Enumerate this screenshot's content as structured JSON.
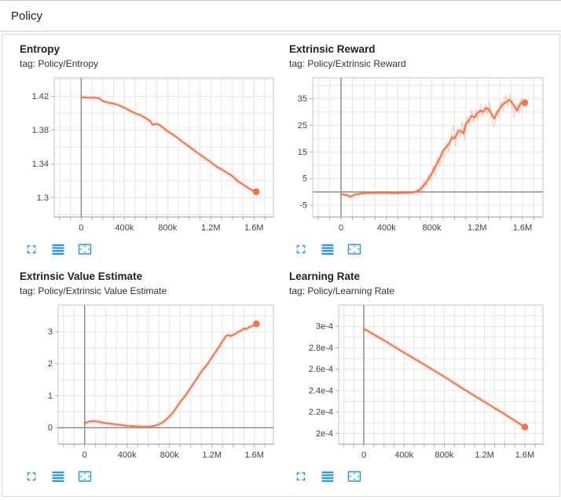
{
  "header": {
    "title": "Policy"
  },
  "colors": {
    "line": "#ff7043",
    "icon": "#2196f3",
    "zero_axis": "#8f8f8f",
    "grid": "#e5e5e5"
  },
  "card_icons": [
    "fullscreen-icon",
    "runs-selector-icon",
    "fit-domain-icon"
  ],
  "chart_data": [
    {
      "type": "line",
      "title": "Entropy",
      "tag": "tag: Policy/Entropy",
      "color": "#ff7043",
      "margin_left": 44,
      "xlim": [
        -250000,
        1780000
      ],
      "ylim": [
        1.277,
        1.442
      ],
      "x_minor_step": 100000,
      "y_minor_step": 0.02,
      "zero_x_line": true,
      "zero_y_line": false,
      "xticks": [
        {
          "v": 0,
          "label": "0"
        },
        {
          "v": 400000,
          "label": "400k"
        },
        {
          "v": 800000,
          "label": "800k"
        },
        {
          "v": 1200000,
          "label": "1.2M"
        },
        {
          "v": 1600000,
          "label": "1.6M"
        }
      ],
      "yticks": [
        {
          "v": 1.3,
          "label": "1.3"
        },
        {
          "v": 1.34,
          "label": "1.34"
        },
        {
          "v": 1.38,
          "label": "1.38"
        },
        {
          "v": 1.42,
          "label": "1.42"
        }
      ],
      "series": [
        {
          "name": "smoothed",
          "points": [
            [
              0,
              1.419
            ],
            [
              60000,
              1.4185
            ],
            [
              120000,
              1.4185
            ],
            [
              160000,
              1.418
            ],
            [
              200000,
              1.4145
            ],
            [
              250000,
              1.4125
            ],
            [
              300000,
              1.4115
            ],
            [
              350000,
              1.4095
            ],
            [
              400000,
              1.4065
            ],
            [
              450000,
              1.403
            ],
            [
              500000,
              1.4
            ],
            [
              550000,
              1.3975
            ],
            [
              600000,
              1.394
            ],
            [
              640000,
              1.3905
            ],
            [
              660000,
              1.3865
            ],
            [
              700000,
              1.3875
            ],
            [
              720000,
              1.3865
            ],
            [
              760000,
              1.383
            ],
            [
              800000,
              1.3785
            ],
            [
              850000,
              1.3745
            ],
            [
              900000,
              1.37
            ],
            [
              950000,
              1.365
            ],
            [
              1000000,
              1.3605
            ],
            [
              1050000,
              1.3555
            ],
            [
              1100000,
              1.351
            ],
            [
              1150000,
              1.3465
            ],
            [
              1200000,
              1.342
            ],
            [
              1250000,
              1.337
            ],
            [
              1300000,
              1.3335
            ],
            [
              1350000,
              1.3295
            ],
            [
              1400000,
              1.3255
            ],
            [
              1450000,
              1.3195
            ],
            [
              1500000,
              1.3155
            ],
            [
              1550000,
              1.311
            ],
            [
              1600000,
              1.3075
            ],
            [
              1620000,
              1.307
            ]
          ]
        }
      ],
      "end_dot": [
        1620000,
        1.307
      ]
    },
    {
      "type": "line",
      "title": "Extrinsic Reward",
      "tag": "tag: Policy/Extrinsic Reward",
      "color": "#ff7043",
      "margin_left": 30,
      "xlim": [
        -250000,
        1780000
      ],
      "ylim": [
        -9.4,
        42.8
      ],
      "x_minor_step": 100000,
      "y_minor_step": 5,
      "zero_x_line": true,
      "zero_y_line": true,
      "xticks": [
        {
          "v": 0,
          "label": "0"
        },
        {
          "v": 400000,
          "label": "400k"
        },
        {
          "v": 800000,
          "label": "800k"
        },
        {
          "v": 1200000,
          "label": "1.2M"
        },
        {
          "v": 1600000,
          "label": "1.6M"
        }
      ],
      "yticks": [
        {
          "v": -5,
          "label": "-5"
        },
        {
          "v": 5,
          "label": "5"
        },
        {
          "v": 15,
          "label": "15"
        },
        {
          "v": 25,
          "label": "25"
        },
        {
          "v": 35,
          "label": "35"
        }
      ],
      "series": [
        {
          "name": "raw",
          "points": [
            [
              0,
              -0.5
            ],
            [
              30000,
              -1.5
            ],
            [
              60000,
              -0.8
            ],
            [
              80000,
              -2.6
            ],
            [
              100000,
              -1.8
            ],
            [
              130000,
              -0.6
            ],
            [
              160000,
              -1.2
            ],
            [
              200000,
              -0.4
            ],
            [
              300000,
              -0.5
            ],
            [
              400000,
              -0.3
            ],
            [
              500000,
              -0.5
            ],
            [
              600000,
              -0.4
            ],
            [
              650000,
              0.2
            ],
            [
              680000,
              -1
            ],
            [
              700000,
              2
            ],
            [
              710000,
              -0.5
            ],
            [
              730000,
              4.5
            ],
            [
              750000,
              1.5
            ],
            [
              770000,
              6.5
            ],
            [
              790000,
              4
            ],
            [
              810000,
              9.5
            ],
            [
              830000,
              6
            ],
            [
              850000,
              13
            ],
            [
              870000,
              9.5
            ],
            [
              890000,
              16
            ],
            [
              910000,
              12.5
            ],
            [
              930000,
              18.5
            ],
            [
              950000,
              15
            ],
            [
              970000,
              21
            ],
            [
              990000,
              25
            ],
            [
              1010000,
              17
            ],
            [
              1030000,
              24
            ],
            [
              1050000,
              20.5
            ],
            [
              1070000,
              26.5
            ],
            [
              1090000,
              19.5
            ],
            [
              1110000,
              28
            ],
            [
              1130000,
              25
            ],
            [
              1150000,
              31
            ],
            [
              1170000,
              26
            ],
            [
              1190000,
              31
            ],
            [
              1210000,
              27
            ],
            [
              1230000,
              33
            ],
            [
              1250000,
              28
            ],
            [
              1270000,
              33
            ],
            [
              1290000,
              29
            ],
            [
              1310000,
              34
            ],
            [
              1330000,
              26
            ],
            [
              1350000,
              24.5
            ],
            [
              1370000,
              30.5
            ],
            [
              1390000,
              28
            ],
            [
              1410000,
              34
            ],
            [
              1430000,
              30
            ],
            [
              1450000,
              36.5
            ],
            [
              1470000,
              32
            ],
            [
              1490000,
              37
            ],
            [
              1510000,
              31
            ],
            [
              1530000,
              28
            ],
            [
              1550000,
              33
            ],
            [
              1570000,
              29.5
            ],
            [
              1590000,
              35
            ],
            [
              1610000,
              32
            ],
            [
              1620000,
              34
            ]
          ]
        },
        {
          "name": "smoothed",
          "points": [
            [
              0,
              -0.8
            ],
            [
              50000,
              -1.2
            ],
            [
              80000,
              -1.8
            ],
            [
              120000,
              -1.0
            ],
            [
              200000,
              -0.5
            ],
            [
              300000,
              -0.4
            ],
            [
              400000,
              -0.35
            ],
            [
              500000,
              -0.45
            ],
            [
              600000,
              -0.35
            ],
            [
              650000,
              -0.1
            ],
            [
              700000,
              1.0
            ],
            [
              750000,
              3.5
            ],
            [
              800000,
              7.0
            ],
            [
              850000,
              11.0
            ],
            [
              880000,
              13.5
            ],
            [
              900000,
              15.5
            ],
            [
              930000,
              17.0
            ],
            [
              950000,
              18.0
            ],
            [
              980000,
              20.5
            ],
            [
              1000000,
              20.0
            ],
            [
              1030000,
              22.5
            ],
            [
              1050000,
              23.0
            ],
            [
              1080000,
              22.0
            ],
            [
              1100000,
              25.5
            ],
            [
              1130000,
              27.0
            ],
            [
              1150000,
              28.5
            ],
            [
              1180000,
              28.0
            ],
            [
              1200000,
              29.5
            ],
            [
              1230000,
              30.5
            ],
            [
              1250000,
              30.0
            ],
            [
              1280000,
              31.5
            ],
            [
              1300000,
              31.0
            ],
            [
              1330000,
              29.0
            ],
            [
              1350000,
              27.5
            ],
            [
              1380000,
              30.0
            ],
            [
              1400000,
              31.5
            ],
            [
              1430000,
              33.0
            ],
            [
              1450000,
              33.5
            ],
            [
              1480000,
              34.5
            ],
            [
              1500000,
              34.0
            ],
            [
              1530000,
              32.0
            ],
            [
              1550000,
              30.5
            ],
            [
              1580000,
              33.0
            ],
            [
              1600000,
              33.5
            ],
            [
              1620000,
              33.5
            ]
          ]
        }
      ],
      "end_dot": [
        1620000,
        33.5
      ]
    },
    {
      "type": "line",
      "title": "Extrinsic Value Estimate",
      "tag": "tag: Policy/Extrinsic Value Estimate",
      "color": "#ff7043",
      "margin_left": 49,
      "xlim": [
        -250000,
        1780000
      ],
      "ylim": [
        -0.516,
        3.836
      ],
      "x_minor_step": 100000,
      "y_minor_step": 0.5,
      "zero_x_line": true,
      "zero_y_line": true,
      "xticks": [
        {
          "v": 0,
          "label": "0"
        },
        {
          "v": 400000,
          "label": "400k"
        },
        {
          "v": 800000,
          "label": "800k"
        },
        {
          "v": 1200000,
          "label": "1.2M"
        },
        {
          "v": 1600000,
          "label": "1.6M"
        }
      ],
      "yticks": [
        {
          "v": 0,
          "label": "0"
        },
        {
          "v": 1,
          "label": "1"
        },
        {
          "v": 2,
          "label": "2"
        },
        {
          "v": 3,
          "label": "3"
        }
      ],
      "series": [
        {
          "name": "smoothed",
          "points": [
            [
              0,
              0.13
            ],
            [
              30000,
              0.18
            ],
            [
              80000,
              0.21
            ],
            [
              100000,
              0.2
            ],
            [
              150000,
              0.17
            ],
            [
              200000,
              0.14
            ],
            [
              250000,
              0.12
            ],
            [
              300000,
              0.1
            ],
            [
              350000,
              0.08
            ],
            [
              400000,
              0.06
            ],
            [
              450000,
              0.05
            ],
            [
              500000,
              0.04
            ],
            [
              550000,
              0.03
            ],
            [
              600000,
              0.03
            ],
            [
              650000,
              0.05
            ],
            [
              700000,
              0.1
            ],
            [
              750000,
              0.2
            ],
            [
              800000,
              0.35
            ],
            [
              850000,
              0.55
            ],
            [
              900000,
              0.8
            ],
            [
              950000,
              1.0
            ],
            [
              1000000,
              1.25
            ],
            [
              1050000,
              1.5
            ],
            [
              1100000,
              1.75
            ],
            [
              1150000,
              1.95
            ],
            [
              1200000,
              2.2
            ],
            [
              1250000,
              2.45
            ],
            [
              1300000,
              2.7
            ],
            [
              1330000,
              2.85
            ],
            [
              1350000,
              2.9
            ],
            [
              1380000,
              2.87
            ],
            [
              1400000,
              2.9
            ],
            [
              1430000,
              2.95
            ],
            [
              1450000,
              3.0
            ],
            [
              1480000,
              3.05
            ],
            [
              1500000,
              3.1
            ],
            [
              1530000,
              3.08
            ],
            [
              1550000,
              3.15
            ],
            [
              1580000,
              3.17
            ],
            [
              1600000,
              3.22
            ],
            [
              1620000,
              3.25
            ]
          ]
        }
      ],
      "end_dot": [
        1620000,
        3.25
      ]
    },
    {
      "type": "line",
      "title": "Learning Rate",
      "tag": "tag: Policy/Learning Rate",
      "color": "#ff7043",
      "margin_left": 63,
      "xlim": [
        -250000,
        1780000
      ],
      "ylim": [
        0.00019,
        0.00032
      ],
      "x_minor_step": 100000,
      "y_minor_step": 1e-05,
      "zero_x_line": true,
      "zero_y_line": false,
      "xticks": [
        {
          "v": 0,
          "label": "0"
        },
        {
          "v": 400000,
          "label": "400k"
        },
        {
          "v": 800000,
          "label": "800k"
        },
        {
          "v": 1200000,
          "label": "1.2M"
        },
        {
          "v": 1600000,
          "label": "1.6M"
        }
      ],
      "yticks": [
        {
          "v": 0.0002,
          "label": "2e-4"
        },
        {
          "v": 0.00022,
          "label": "2.2e-4"
        },
        {
          "v": 0.00024,
          "label": "2.4e-4"
        },
        {
          "v": 0.00026,
          "label": "2.6e-4"
        },
        {
          "v": 0.00028,
          "label": "2.8e-4"
        },
        {
          "v": 0.0003,
          "label": "3e-4"
        }
      ],
      "series": [
        {
          "name": "smoothed",
          "points": [
            [
              0,
              0.000298
            ],
            [
              200000,
              0.000287
            ],
            [
              400000,
              0.0002755
            ],
            [
              600000,
              0.0002645
            ],
            [
              800000,
              0.000253
            ],
            [
              1000000,
              0.000241
            ],
            [
              1200000,
              0.0002295
            ],
            [
              1400000,
              0.000218
            ],
            [
              1600000,
              0.000206
            ]
          ]
        }
      ],
      "end_dot": [
        1600000,
        0.000206
      ]
    }
  ]
}
